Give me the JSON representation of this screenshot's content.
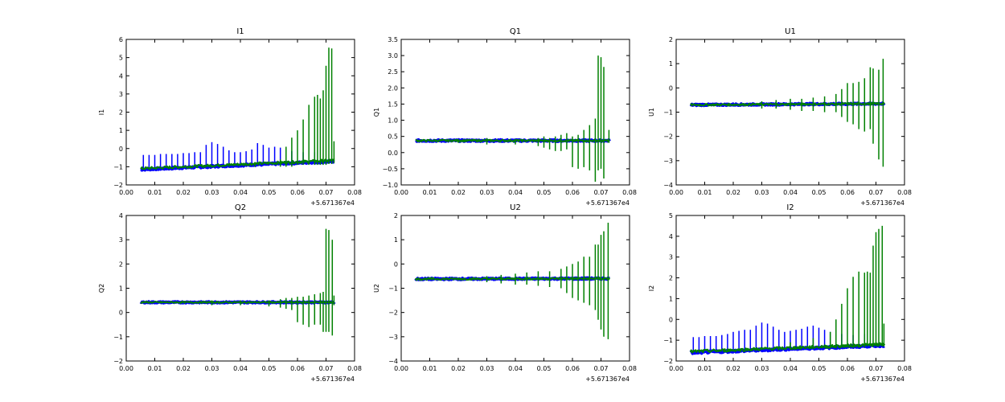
{
  "colors": {
    "blue": "#0000ff",
    "green": "#008000",
    "axis": "#000000",
    "background": "#ffffff"
  },
  "chart_data": [
    {
      "type": "line",
      "title": "I1",
      "ylabel": "I1",
      "xlim": [
        0.0,
        0.08
      ],
      "ylim": [
        -2,
        6
      ],
      "xticks": [
        "0.00",
        "0.01",
        "0.02",
        "0.03",
        "0.04",
        "0.05",
        "0.06",
        "0.07",
        "0.08"
      ],
      "yticks": [
        "−2",
        "−1",
        "0",
        "1",
        "2",
        "3",
        "4",
        "5",
        "6"
      ],
      "x_offset_label": "+5.671367e4",
      "series": [
        {
          "name": "blue",
          "color": "#0000ff",
          "baseline": [
            [
              0.005,
              -1.15
            ],
            [
              0.073,
              -0.7
            ]
          ],
          "spread": 0.1,
          "spikes": [
            [
              0.006,
              -0.35
            ],
            [
              0.008,
              -0.35
            ],
            [
              0.01,
              -0.35
            ],
            [
              0.012,
              -0.3
            ],
            [
              0.014,
              -0.3
            ],
            [
              0.016,
              -0.3
            ],
            [
              0.018,
              -0.3
            ],
            [
              0.02,
              -0.25
            ],
            [
              0.022,
              -0.25
            ],
            [
              0.024,
              -0.2
            ],
            [
              0.026,
              -0.2
            ],
            [
              0.028,
              0.2
            ],
            [
              0.03,
              0.35
            ],
            [
              0.032,
              0.25
            ],
            [
              0.034,
              0.1
            ],
            [
              0.036,
              -0.1
            ],
            [
              0.038,
              -0.2
            ],
            [
              0.04,
              -0.2
            ],
            [
              0.042,
              -0.15
            ],
            [
              0.044,
              -0.05
            ],
            [
              0.046,
              0.3
            ],
            [
              0.048,
              0.2
            ],
            [
              0.05,
              0.05
            ],
            [
              0.052,
              0.1
            ],
            [
              0.054,
              0.05
            ],
            [
              0.058,
              -0.15
            ],
            [
              0.062,
              -0.2
            ],
            [
              0.066,
              -0.2
            ]
          ]
        },
        {
          "name": "green",
          "color": "#008000",
          "baseline": [
            [
              0.005,
              -1.1
            ],
            [
              0.073,
              -0.65
            ]
          ],
          "spread": 0.15,
          "spikes": [
            [
              0.036,
              -0.85,
              -1.0
            ],
            [
              0.045,
              -0.75,
              -1.0
            ],
            [
              0.054,
              -0.6,
              -1.0
            ],
            [
              0.056,
              0.1,
              -1.0
            ],
            [
              0.058,
              0.6,
              -1.0
            ],
            [
              0.06,
              1.0,
              -0.9
            ],
            [
              0.062,
              1.6,
              -0.9
            ],
            [
              0.064,
              2.4,
              -0.9
            ],
            [
              0.066,
              2.85,
              -0.9
            ],
            [
              0.067,
              2.95,
              -0.9
            ],
            [
              0.068,
              2.75,
              -0.9
            ],
            [
              0.069,
              3.2,
              -0.9
            ],
            [
              0.07,
              4.55,
              -0.9
            ],
            [
              0.071,
              5.55,
              -0.85
            ],
            [
              0.072,
              5.5,
              -0.85
            ],
            [
              0.0728,
              0.4,
              -0.8
            ]
          ]
        }
      ]
    },
    {
      "type": "line",
      "title": "Q1",
      "ylabel": "Q1",
      "xlim": [
        0.0,
        0.08
      ],
      "ylim": [
        -1.0,
        3.5
      ],
      "xticks": [
        "0.00",
        "0.01",
        "0.02",
        "0.03",
        "0.04",
        "0.05",
        "0.06",
        "0.07",
        "0.08"
      ],
      "yticks": [
        "−1.0",
        "−0.5",
        "0.0",
        "0.5",
        "1.0",
        "1.5",
        "2.0",
        "2.5",
        "3.0",
        "3.5"
      ],
      "x_offset_label": "+5.671367e4",
      "series": [
        {
          "name": "blue",
          "color": "#0000ff",
          "baseline": [
            [
              0.005,
              0.37
            ],
            [
              0.073,
              0.37
            ]
          ],
          "spread": 0.05,
          "spikes": []
        },
        {
          "name": "green",
          "color": "#008000",
          "baseline": [
            [
              0.005,
              0.37
            ],
            [
              0.073,
              0.37
            ]
          ],
          "spread": 0.06,
          "spikes": [
            [
              0.02,
              0.42,
              0.3
            ],
            [
              0.03,
              0.45,
              0.25
            ],
            [
              0.04,
              0.42,
              0.25
            ],
            [
              0.048,
              0.45,
              0.2
            ],
            [
              0.05,
              0.5,
              0.15
            ],
            [
              0.052,
              0.45,
              0.1
            ],
            [
              0.054,
              0.5,
              0.05
            ],
            [
              0.056,
              0.55,
              0.05
            ],
            [
              0.058,
              0.6,
              0.1
            ],
            [
              0.06,
              0.5,
              -0.45
            ],
            [
              0.062,
              0.55,
              -0.5
            ],
            [
              0.064,
              0.7,
              -0.45
            ],
            [
              0.066,
              0.85,
              -0.55
            ],
            [
              0.068,
              1.05,
              -0.9
            ],
            [
              0.069,
              3.0,
              -0.55
            ],
            [
              0.07,
              2.95,
              -0.5
            ],
            [
              0.071,
              2.65,
              -0.8
            ],
            [
              0.0728,
              0.7,
              0.3
            ]
          ]
        }
      ]
    },
    {
      "type": "line",
      "title": "U1",
      "ylabel": "U1",
      "xlim": [
        0.0,
        0.08
      ],
      "ylim": [
        -4,
        2
      ],
      "xticks": [
        "0.00",
        "0.01",
        "0.02",
        "0.03",
        "0.04",
        "0.05",
        "0.06",
        "0.07",
        "0.08"
      ],
      "yticks": [
        "−4",
        "−3",
        "−2",
        "−1",
        "0",
        "1",
        "2"
      ],
      "x_offset_label": "+5.671367e4",
      "series": [
        {
          "name": "blue",
          "color": "#0000ff",
          "baseline": [
            [
              0.005,
              -0.7
            ],
            [
              0.073,
              -0.65
            ]
          ],
          "spread": 0.06,
          "spikes": []
        },
        {
          "name": "green",
          "color": "#008000",
          "baseline": [
            [
              0.005,
              -0.7
            ],
            [
              0.073,
              -0.65
            ]
          ],
          "spread": 0.08,
          "spikes": [
            [
              0.03,
              -0.55,
              -0.85
            ],
            [
              0.035,
              -0.5,
              -0.85
            ],
            [
              0.04,
              -0.45,
              -0.9
            ],
            [
              0.044,
              -0.45,
              -0.95
            ],
            [
              0.048,
              -0.4,
              -0.95
            ],
            [
              0.052,
              -0.35,
              -1.0
            ],
            [
              0.056,
              -0.25,
              -1.0
            ],
            [
              0.058,
              -0.05,
              -1.2
            ],
            [
              0.06,
              0.2,
              -1.4
            ],
            [
              0.062,
              0.2,
              -1.5
            ],
            [
              0.064,
              0.25,
              -1.7
            ],
            [
              0.066,
              0.4,
              -1.8
            ],
            [
              0.068,
              0.85,
              -1.7
            ],
            [
              0.069,
              0.8,
              -2.3
            ],
            [
              0.071,
              0.75,
              -2.95
            ],
            [
              0.0725,
              1.2,
              -3.25
            ]
          ]
        }
      ]
    },
    {
      "type": "line",
      "title": "Q2",
      "ylabel": "Q2",
      "xlim": [
        0.0,
        0.08
      ],
      "ylim": [
        -2,
        4
      ],
      "xticks": [
        "0.00",
        "0.01",
        "0.02",
        "0.03",
        "0.04",
        "0.05",
        "0.06",
        "0.07",
        "0.08"
      ],
      "yticks": [
        "−2",
        "−1",
        "0",
        "1",
        "2",
        "3",
        "4"
      ],
      "x_offset_label": "+5.671367e4",
      "series": [
        {
          "name": "blue",
          "color": "#0000ff",
          "baseline": [
            [
              0.005,
              0.42
            ],
            [
              0.073,
              0.42
            ]
          ],
          "spread": 0.05,
          "spikes": []
        },
        {
          "name": "green",
          "color": "#008000",
          "baseline": [
            [
              0.005,
              0.42
            ],
            [
              0.073,
              0.42
            ]
          ],
          "spread": 0.06,
          "spikes": [
            [
              0.03,
              0.5,
              0.3
            ],
            [
              0.04,
              0.5,
              0.3
            ],
            [
              0.05,
              0.5,
              0.25
            ],
            [
              0.054,
              0.55,
              0.2
            ],
            [
              0.056,
              0.6,
              0.15
            ],
            [
              0.058,
              0.6,
              0.1
            ],
            [
              0.06,
              0.65,
              -0.4
            ],
            [
              0.062,
              0.65,
              -0.5
            ],
            [
              0.064,
              0.7,
              -0.6
            ],
            [
              0.066,
              0.75,
              -0.5
            ],
            [
              0.068,
              0.8,
              -0.5
            ],
            [
              0.069,
              0.85,
              -0.8
            ],
            [
              0.07,
              3.45,
              -0.8
            ],
            [
              0.071,
              3.4,
              -0.8
            ],
            [
              0.0722,
              3.0,
              -0.95
            ],
            [
              0.0728,
              0.7,
              0.3
            ]
          ]
        }
      ]
    },
    {
      "type": "line",
      "title": "U2",
      "ylabel": "U2",
      "xlim": [
        0.0,
        0.08
      ],
      "ylim": [
        -4,
        2
      ],
      "xticks": [
        "0.00",
        "0.01",
        "0.02",
        "0.03",
        "0.04",
        "0.05",
        "0.06",
        "0.07",
        "0.08"
      ],
      "yticks": [
        "−4",
        "−3",
        "−2",
        "−1",
        "0",
        "1",
        "2"
      ],
      "x_offset_label": "+5.671367e4",
      "series": [
        {
          "name": "blue",
          "color": "#0000ff",
          "baseline": [
            [
              0.005,
              -0.62
            ],
            [
              0.073,
              -0.6
            ]
          ],
          "spread": 0.06,
          "spikes": []
        },
        {
          "name": "green",
          "color": "#008000",
          "baseline": [
            [
              0.005,
              -0.62
            ],
            [
              0.073,
              -0.6
            ]
          ],
          "spread": 0.08,
          "spikes": [
            [
              0.03,
              -0.5,
              -0.75
            ],
            [
              0.035,
              -0.45,
              -0.8
            ],
            [
              0.04,
              -0.4,
              -0.85
            ],
            [
              0.044,
              -0.35,
              -0.85
            ],
            [
              0.048,
              -0.3,
              -0.9
            ],
            [
              0.052,
              -0.3,
              -0.95
            ],
            [
              0.056,
              -0.2,
              -1.0
            ],
            [
              0.058,
              -0.1,
              -1.2
            ],
            [
              0.06,
              0.0,
              -1.4
            ],
            [
              0.062,
              0.1,
              -1.5
            ],
            [
              0.064,
              0.3,
              -1.6
            ],
            [
              0.066,
              0.3,
              -1.7
            ],
            [
              0.068,
              0.8,
              -1.9
            ],
            [
              0.069,
              0.8,
              -2.3
            ],
            [
              0.07,
              1.2,
              -2.7
            ],
            [
              0.071,
              1.35,
              -3.0
            ],
            [
              0.0725,
              1.7,
              -3.1
            ]
          ]
        }
      ]
    },
    {
      "type": "line",
      "title": "I2",
      "ylabel": "I2",
      "xlim": [
        0.0,
        0.08
      ],
      "ylim": [
        -2,
        5
      ],
      "xticks": [
        "0.00",
        "0.01",
        "0.02",
        "0.03",
        "0.04",
        "0.05",
        "0.06",
        "0.07",
        "0.08"
      ],
      "yticks": [
        "−2",
        "−1",
        "0",
        "1",
        "2",
        "3",
        "4",
        "5"
      ],
      "x_offset_label": "+5.671367e4",
      "series": [
        {
          "name": "blue",
          "color": "#0000ff",
          "baseline": [
            [
              0.005,
              -1.6
            ],
            [
              0.073,
              -1.25
            ]
          ],
          "spread": 0.1,
          "spikes": [
            [
              0.006,
              -0.85
            ],
            [
              0.008,
              -0.85
            ],
            [
              0.01,
              -0.8
            ],
            [
              0.012,
              -0.8
            ],
            [
              0.014,
              -0.8
            ],
            [
              0.016,
              -0.75
            ],
            [
              0.018,
              -0.7
            ],
            [
              0.02,
              -0.6
            ],
            [
              0.022,
              -0.55
            ],
            [
              0.024,
              -0.5
            ],
            [
              0.026,
              -0.5
            ],
            [
              0.028,
              -0.3
            ],
            [
              0.03,
              -0.15
            ],
            [
              0.032,
              -0.2
            ],
            [
              0.034,
              -0.35
            ],
            [
              0.036,
              -0.5
            ],
            [
              0.038,
              -0.6
            ],
            [
              0.04,
              -0.55
            ],
            [
              0.042,
              -0.5
            ],
            [
              0.044,
              -0.45
            ],
            [
              0.046,
              -0.35
            ],
            [
              0.048,
              -0.3
            ],
            [
              0.05,
              -0.4
            ],
            [
              0.052,
              -0.5
            ],
            [
              0.054,
              -0.6
            ],
            [
              0.058,
              -0.7
            ],
            [
              0.062,
              -0.75
            ],
            [
              0.066,
              -0.7
            ]
          ]
        },
        {
          "name": "green",
          "color": "#008000",
          "baseline": [
            [
              0.005,
              -1.55
            ],
            [
              0.073,
              -1.2
            ]
          ],
          "spread": 0.15,
          "spikes": [
            [
              0.04,
              -1.1,
              -1.45
            ],
            [
              0.048,
              -0.9,
              -1.4
            ],
            [
              0.054,
              -0.6,
              -1.4
            ],
            [
              0.056,
              0.0,
              -1.4
            ],
            [
              0.058,
              0.75,
              -1.35
            ],
            [
              0.06,
              1.5,
              -1.35
            ],
            [
              0.062,
              2.05,
              -1.3
            ],
            [
              0.064,
              2.3,
              -1.3
            ],
            [
              0.066,
              2.25,
              -1.3
            ],
            [
              0.067,
              2.3,
              -1.3
            ],
            [
              0.068,
              2.25,
              -1.3
            ],
            [
              0.069,
              3.55,
              -1.3
            ],
            [
              0.07,
              4.2,
              -1.3
            ],
            [
              0.071,
              4.35,
              -1.3
            ],
            [
              0.0722,
              4.5,
              -1.3
            ],
            [
              0.0728,
              -0.2,
              -1.3
            ]
          ]
        }
      ]
    }
  ]
}
